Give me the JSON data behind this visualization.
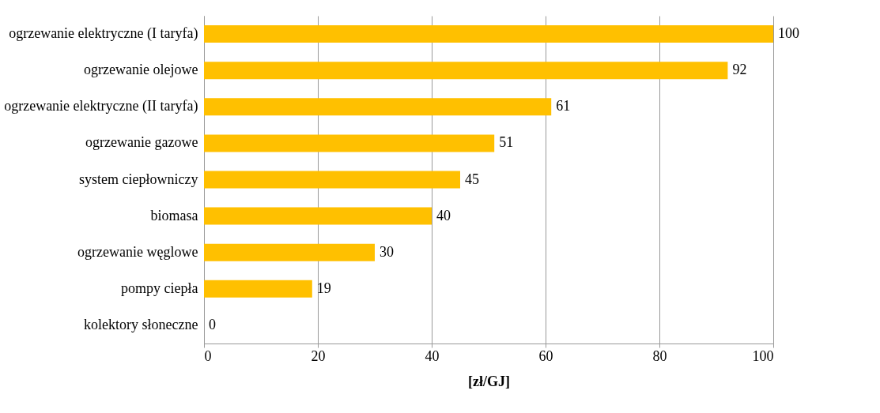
{
  "chart_data": {
    "type": "bar",
    "orientation": "horizontal",
    "xlabel": "[zł/GJ]",
    "categories": [
      "ogrzewanie elektryczne (I taryfa)",
      "ogrzewanie olejowe",
      "ogrzewanie elektryczne (II taryfa)",
      "ogrzewanie gazowe",
      "system ciepłowniczy",
      "biomasa",
      "ogrzewanie węglowe",
      "pompy ciepła",
      "kolektory słoneczne"
    ],
    "values": [
      100,
      92,
      61,
      51,
      45,
      40,
      30,
      19,
      0
    ],
    "color": "#ffc000",
    "xlim": [
      0,
      100
    ],
    "xticks": [
      0,
      20,
      40,
      60,
      80,
      100
    ],
    "grid": "x",
    "data_labels": true
  }
}
